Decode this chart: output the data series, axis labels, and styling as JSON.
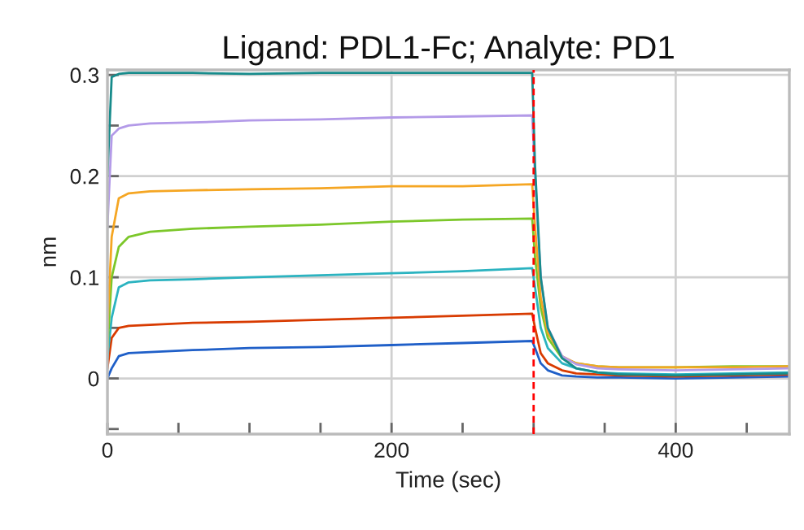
{
  "chart_data": {
    "type": "line",
    "title": "Ligand: PDL1-Fc; Analyte: PD1",
    "xlabel": "Time (sec)",
    "ylabel": "nm",
    "x": [
      0,
      3,
      8,
      15,
      30,
      60,
      100,
      150,
      200,
      250,
      299,
      301,
      305,
      310,
      320,
      330,
      345,
      360,
      400,
      440,
      480
    ],
    "series": [
      {
        "color": "#1f5fc8",
        "values": [
          0,
          0.01,
          0.022,
          0.025,
          0.026,
          0.028,
          0.03,
          0.031,
          0.033,
          0.035,
          0.037,
          0.03,
          0.015,
          0.008,
          0.003,
          0.002,
          0.001,
          0.001,
          0.0,
          0.001,
          0.002
        ]
      },
      {
        "color": "#d83b01",
        "values": [
          0.01,
          0.04,
          0.05,
          0.052,
          0.053,
          0.055,
          0.056,
          0.058,
          0.06,
          0.062,
          0.064,
          0.05,
          0.025,
          0.015,
          0.008,
          0.005,
          0.004,
          0.003,
          0.002,
          0.003,
          0.004
        ]
      },
      {
        "color": "#2bb3c0",
        "values": [
          0.02,
          0.06,
          0.09,
          0.095,
          0.097,
          0.098,
          0.1,
          0.102,
          0.104,
          0.106,
          0.109,
          0.09,
          0.05,
          0.03,
          0.015,
          0.01,
          0.006,
          0.005,
          0.004,
          0.005,
          0.006
        ]
      },
      {
        "color": "#7cc72a",
        "values": [
          0.03,
          0.1,
          0.13,
          0.14,
          0.145,
          0.148,
          0.15,
          0.152,
          0.155,
          0.157,
          0.158,
          0.12,
          0.07,
          0.04,
          0.02,
          0.015,
          0.012,
          0.011,
          0.011,
          0.012,
          0.012
        ]
      },
      {
        "color": "#f5a623",
        "values": [
          0.05,
          0.14,
          0.178,
          0.183,
          0.185,
          0.186,
          0.187,
          0.188,
          0.19,
          0.19,
          0.192,
          0.15,
          0.08,
          0.045,
          0.022,
          0.015,
          0.012,
          0.011,
          0.011,
          0.011,
          0.012
        ]
      },
      {
        "color": "#b39ae8",
        "values": [
          0.15,
          0.24,
          0.247,
          0.25,
          0.252,
          0.253,
          0.255,
          0.256,
          0.258,
          0.259,
          0.26,
          0.2,
          0.1,
          0.05,
          0.022,
          0.014,
          0.01,
          0.009,
          0.008,
          0.009,
          0.01
        ]
      },
      {
        "color": "#178b8b",
        "values": [
          0.2,
          0.298,
          0.301,
          0.302,
          0.302,
          0.302,
          0.301,
          0.302,
          0.302,
          0.302,
          0.302,
          0.21,
          0.1,
          0.05,
          0.02,
          0.01,
          0.006,
          0.004,
          0.003,
          0.004,
          0.005
        ]
      }
    ],
    "xlim": [
      0,
      480
    ],
    "xticks": [
      0,
      {
        "value": 50,
        "label": null
      },
      {
        "value": 100,
        "label": null
      },
      {
        "value": 150,
        "label": null
      },
      200,
      {
        "value": 250,
        "label": null
      },
      {
        "value": 300,
        "label": null
      },
      {
        "value": 350,
        "label": null
      },
      400,
      {
        "value": 450,
        "label": null
      }
    ],
    "ylim": [
      -0.055,
      0.305
    ],
    "yticks": [
      {
        "value": -0.05,
        "label": null
      },
      0,
      {
        "value": 0.05,
        "label": null
      },
      0.1,
      {
        "value": 0.15,
        "label": null
      },
      0.2,
      {
        "value": 0.25,
        "label": null
      },
      0.3
    ],
    "ref_lines": [
      {
        "axis": "x",
        "value": 300,
        "color": "#ff0000",
        "line_style": "dashed"
      }
    ],
    "grid": true,
    "legend": false
  }
}
